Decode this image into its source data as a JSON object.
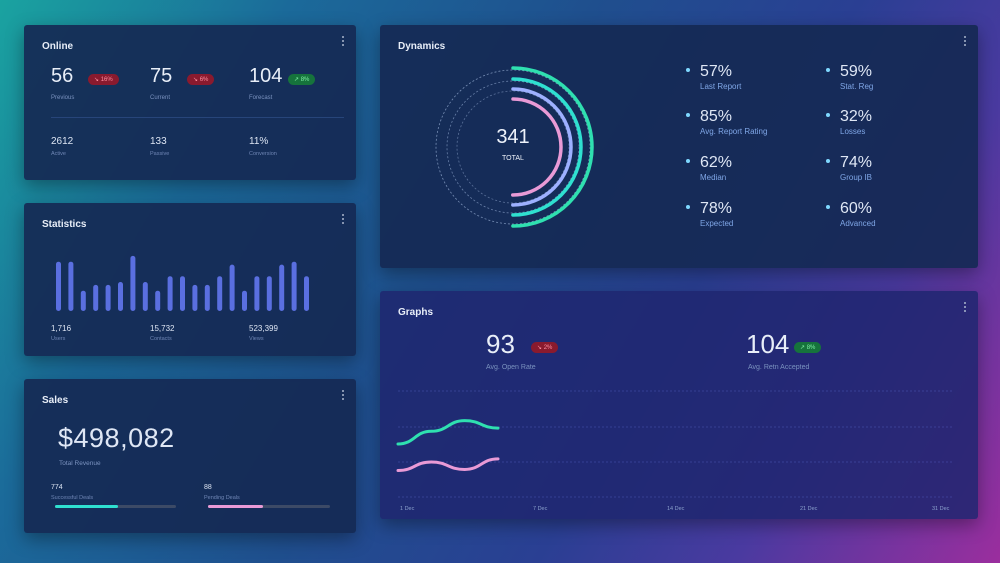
{
  "online": {
    "title": "Online",
    "stats": [
      {
        "value": "56",
        "label": "Previous",
        "badge": "↘ 16%",
        "trend": "down"
      },
      {
        "value": "75",
        "label": "Current",
        "badge": "↘ 6%",
        "trend": "down"
      },
      {
        "value": "104",
        "label": "Forecast",
        "badge": "↗ 8%",
        "trend": "up"
      }
    ],
    "minor": [
      {
        "value": "2612",
        "label": "Active"
      },
      {
        "value": "133",
        "label": "Passive"
      },
      {
        "value": "11%",
        "label": "Conversion"
      }
    ]
  },
  "statistics": {
    "title": "Statistics",
    "bars": [
      0.85,
      0.85,
      0.35,
      0.45,
      0.45,
      0.5,
      0.95,
      0.5,
      0.35,
      0.6,
      0.6,
      0.45,
      0.45,
      0.6,
      0.8,
      0.35,
      0.6,
      0.6,
      0.8,
      0.85,
      0.6
    ],
    "footer": [
      {
        "value": "1,716",
        "label": "Users"
      },
      {
        "value": "15,732",
        "label": "Contacts"
      },
      {
        "value": "523,399",
        "label": "Views"
      }
    ]
  },
  "sales": {
    "title": "Sales",
    "amount": "$498,082",
    "amount_label": "Total Revenue",
    "bars": [
      {
        "value": "774",
        "label": "Successful Deals",
        "fraction": 0.52,
        "color": "#2fe0d0"
      },
      {
        "value": "88",
        "label": "Pending Deals",
        "fraction": 0.45,
        "color": "#e99ad6"
      }
    ]
  },
  "dynamics": {
    "title": "Dynamics",
    "total": "341",
    "total_label": "TOTAL",
    "metrics": [
      {
        "pct": "57%",
        "label": "Last Report"
      },
      {
        "pct": "59%",
        "label": "Stat. Reg"
      },
      {
        "pct": "85%",
        "label": "Avg. Report Rating"
      },
      {
        "pct": "32%",
        "label": "Losses"
      },
      {
        "pct": "62%",
        "label": "Median"
      },
      {
        "pct": "74%",
        "label": "Group IB"
      },
      {
        "pct": "78%",
        "label": "Expected"
      },
      {
        "pct": "60%",
        "label": "Advanced"
      }
    ],
    "rings": [
      {
        "color": "#2fe0b0",
        "fraction": 0.5
      },
      {
        "color": "#2fe0d0",
        "fraction": 0.5
      },
      {
        "color": "#9db0ff",
        "fraction": 0.5
      },
      {
        "color": "#e99ad6",
        "fraction": 0.5
      }
    ]
  },
  "graphs": {
    "title": "Graphs",
    "kpis": [
      {
        "value": "93",
        "label": "Avg. Open Rate",
        "badge": "↘ 2%",
        "trend": "down"
      },
      {
        "value": "104",
        "label": "Avg. Retn Accepted",
        "badge": "↗ 8%",
        "trend": "up"
      }
    ],
    "chart_data": {
      "type": "line",
      "x_labels": [
        "1 Dec",
        "7 Dec",
        "14 Dec",
        "21 Dec",
        "31 Dec"
      ],
      "series": [
        {
          "color": "#2fe0b0",
          "values": [
            0.5,
            0.62,
            0.72,
            0.65
          ]
        },
        {
          "color": "#e99ad6",
          "values": [
            0.25,
            0.33,
            0.26,
            0.36
          ]
        }
      ]
    }
  }
}
